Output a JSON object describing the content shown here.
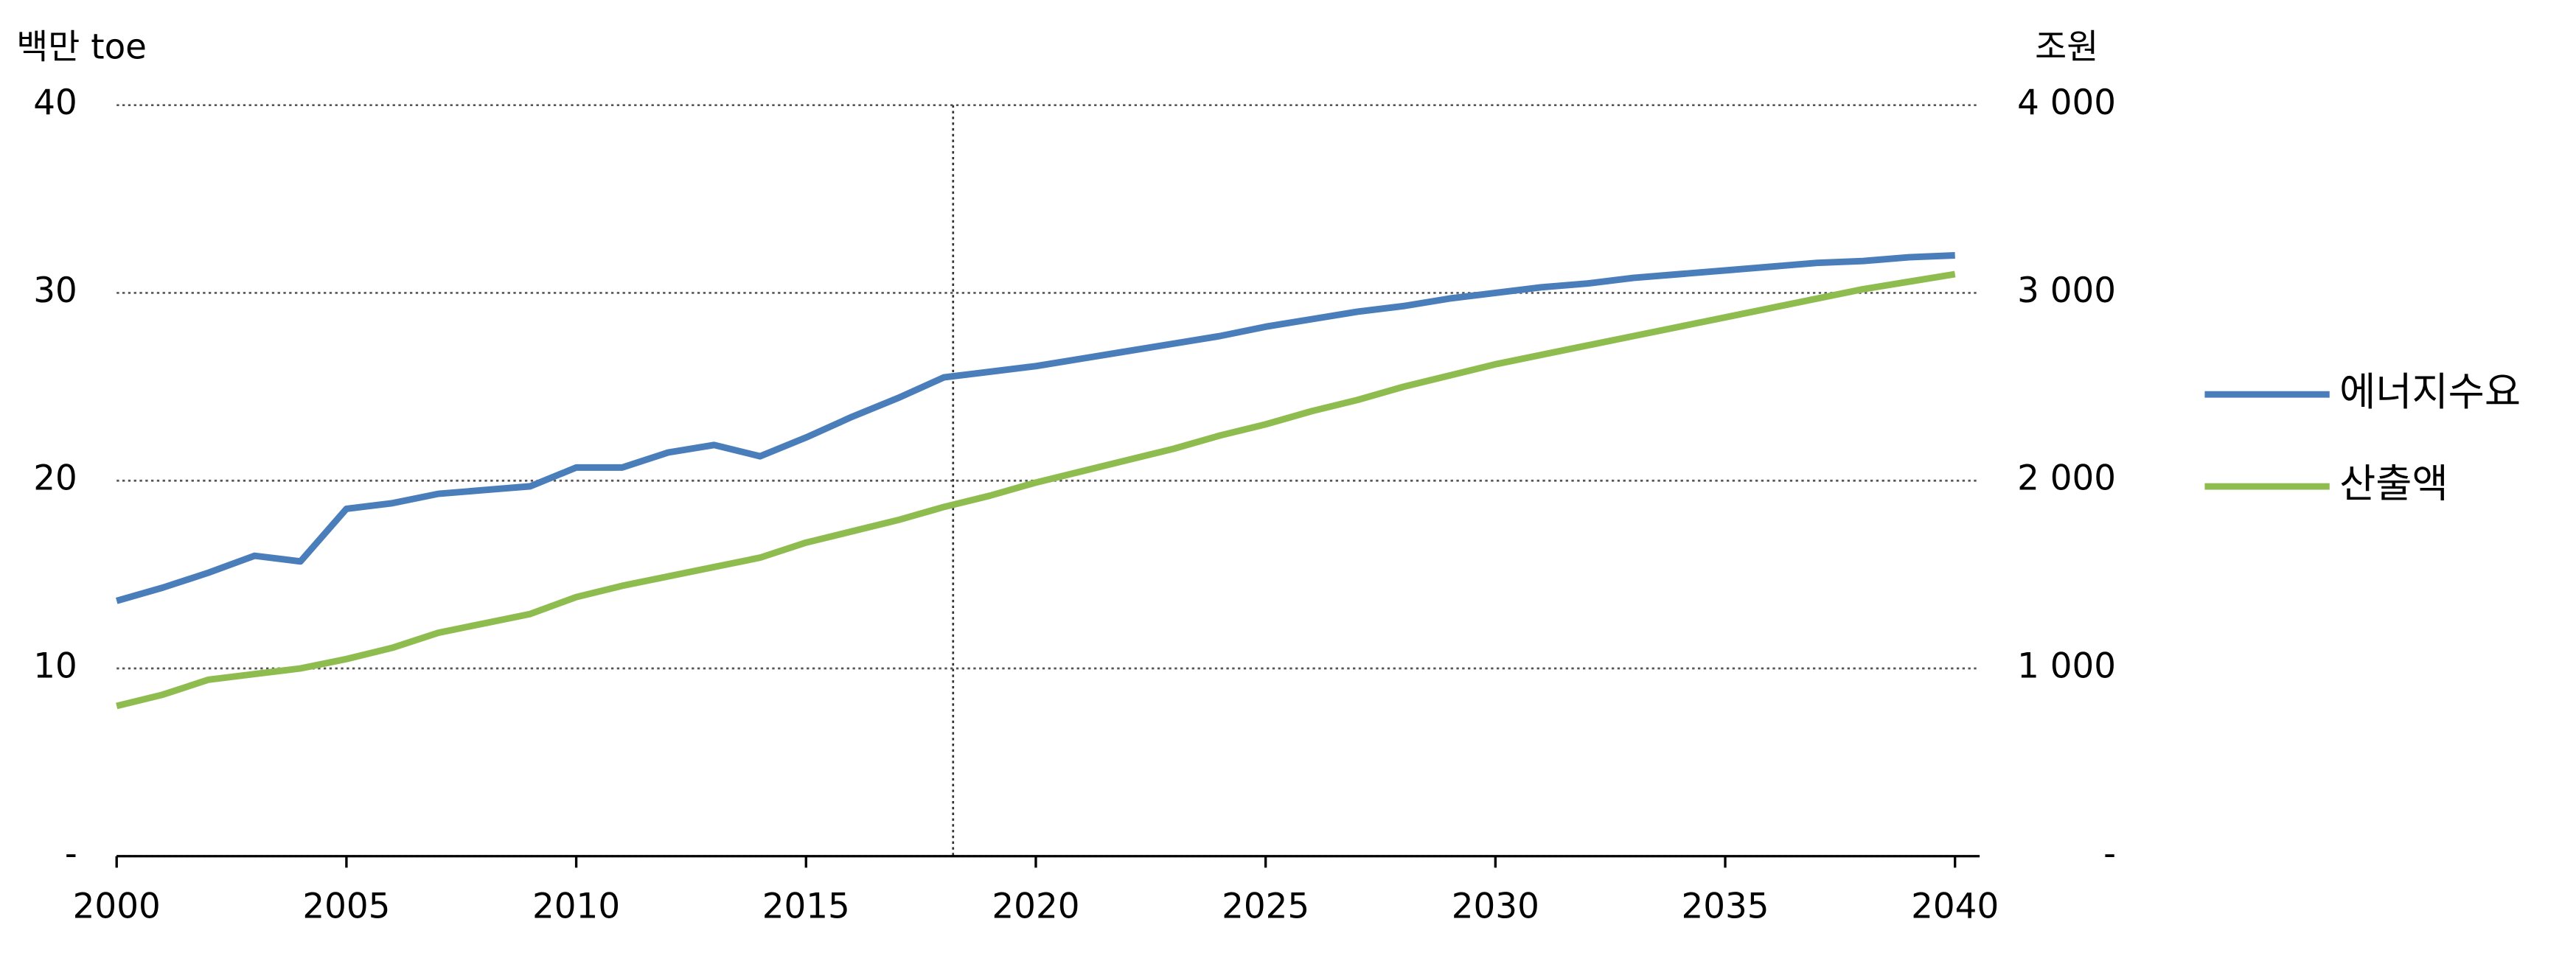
{
  "chart_data": {
    "type": "line",
    "ylabel": "백만 toe",
    "y2label": "조원",
    "x": [
      2000,
      2001,
      2002,
      2003,
      2004,
      2005,
      2006,
      2007,
      2008,
      2009,
      2010,
      2011,
      2012,
      2013,
      2014,
      2015,
      2016,
      2017,
      2018,
      2019,
      2020,
      2021,
      2022,
      2023,
      2024,
      2025,
      2026,
      2027,
      2028,
      2029,
      2030,
      2031,
      2032,
      2033,
      2034,
      2035,
      2036,
      2037,
      2038,
      2039,
      2040
    ],
    "series": [
      {
        "name": "에너지수요",
        "color": "#4a7ebb",
        "axis": "y",
        "values": [
          13.6,
          14.3,
          15.1,
          16.0,
          15.7,
          18.5,
          18.8,
          19.3,
          19.5,
          19.7,
          20.7,
          20.7,
          21.5,
          21.9,
          21.3,
          22.3,
          23.4,
          24.4,
          25.5,
          25.8,
          26.1,
          26.5,
          26.9,
          27.3,
          27.7,
          28.2,
          28.6,
          29.0,
          29.3,
          29.7,
          30.0,
          30.3,
          30.5,
          30.8,
          31.0,
          31.2,
          31.4,
          31.6,
          31.7,
          31.9,
          32.0
        ]
      },
      {
        "name": "산출액",
        "color": "#8fbc4f",
        "axis": "y2",
        "values": [
          800,
          860,
          940,
          970,
          1000,
          1050,
          1110,
          1190,
          1240,
          1290,
          1380,
          1440,
          1490,
          1540,
          1590,
          1670,
          1730,
          1790,
          1860,
          1920,
          1990,
          2050,
          2110,
          2170,
          2240,
          2300,
          2370,
          2430,
          2500,
          2560,
          2620,
          2670,
          2720,
          2770,
          2820,
          2870,
          2920,
          2970,
          3020,
          3060,
          3100
        ]
      }
    ],
    "xlim": [
      2000,
      2040
    ],
    "xticks": [
      2000,
      2005,
      2010,
      2015,
      2020,
      2025,
      2030,
      2035,
      2040
    ],
    "ylim": [
      0,
      40
    ],
    "yticks": [
      {
        "value": 0,
        "label": "-"
      },
      10,
      20,
      30,
      40
    ],
    "y2lim": [
      0,
      4000
    ],
    "y2ticks": [
      {
        "value": 0,
        "label": "-"
      },
      {
        "value": 1000,
        "label": "1 000"
      },
      {
        "value": 2000,
        "label": "2 000"
      },
      {
        "value": 3000,
        "label": "3 000"
      },
      {
        "value": 4000,
        "label": "4 000"
      }
    ],
    "vline_x": 2018.2,
    "grid": true,
    "legend": "right"
  }
}
